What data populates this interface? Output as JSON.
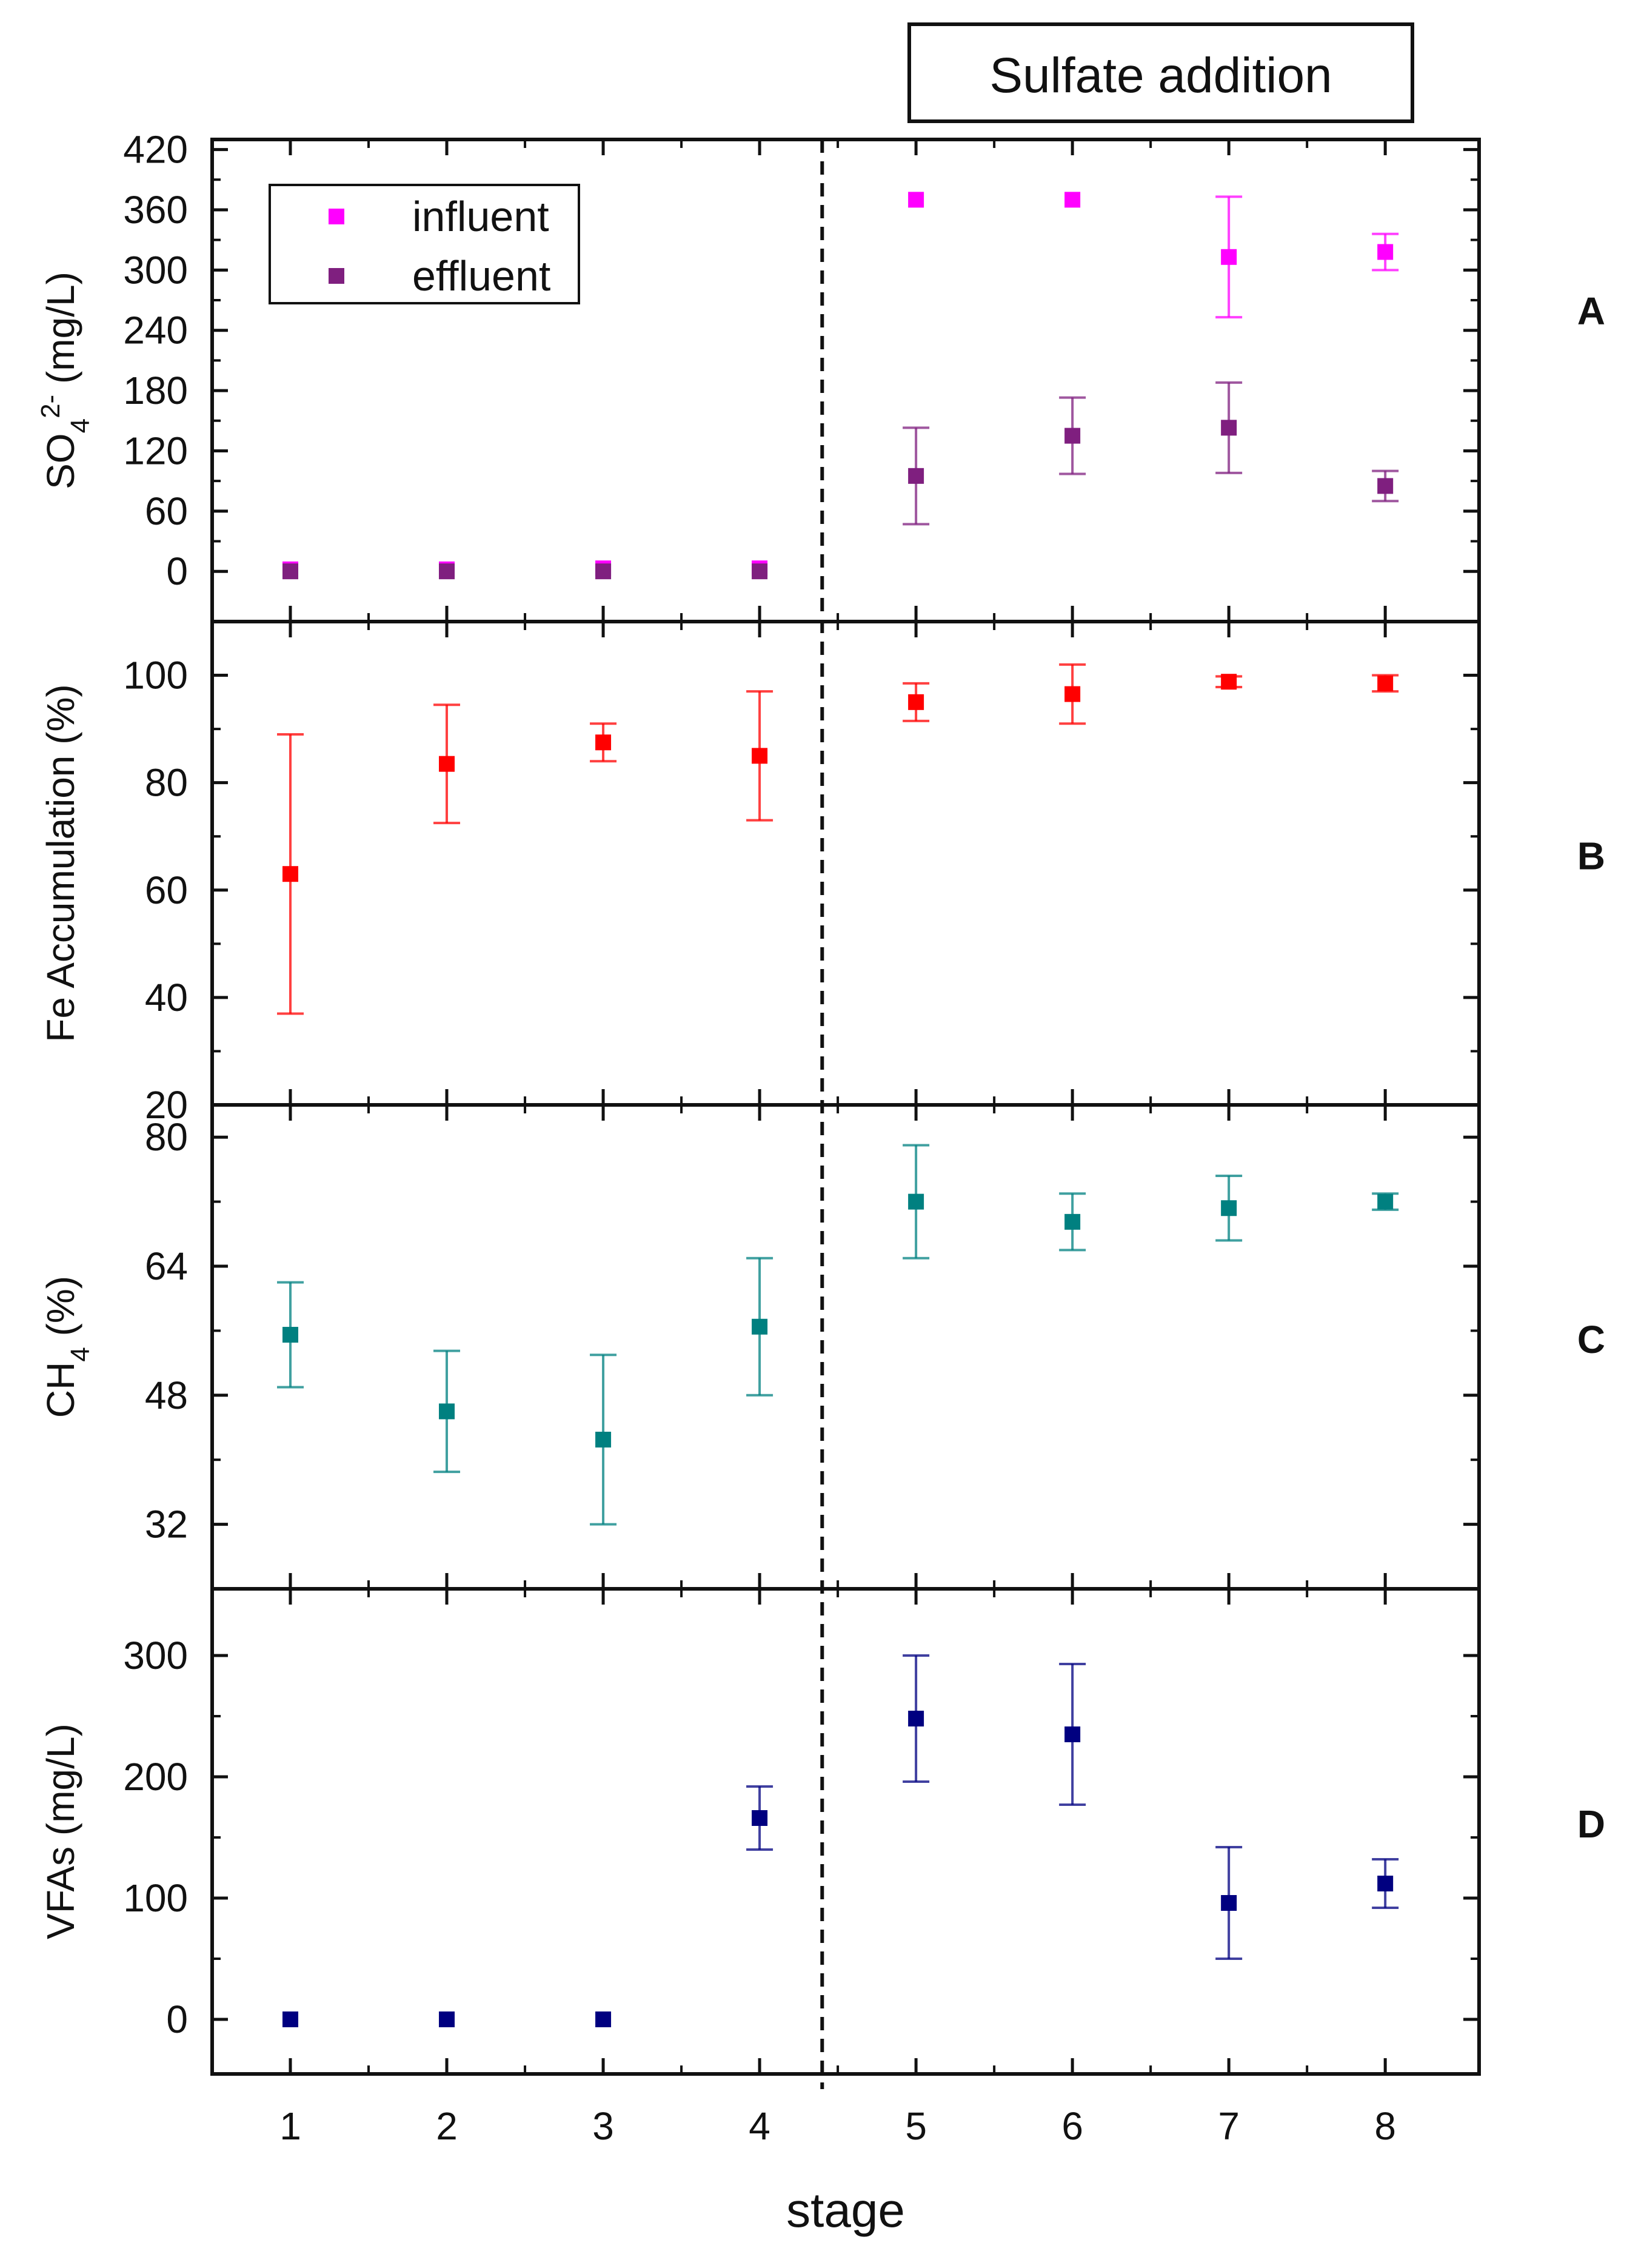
{
  "chart_data": {
    "type": "scatter",
    "annotation": "Sulfate addition",
    "xlabel": "stage",
    "x": [
      1,
      2,
      3,
      4,
      5,
      6,
      7,
      8
    ],
    "xticks": [
      "1",
      "2",
      "3",
      "4",
      "5",
      "6",
      "7",
      "8"
    ],
    "xlim": [
      0.5,
      8.6
    ],
    "divider_x": 4.4,
    "panels": [
      {
        "letter": "A",
        "ylabel_main": "SO",
        "ylabel_sub": "4",
        "ylabel_sup": "2-",
        "ylabel_rest": " (mg/L)",
        "ylim": [
          -50,
          430
        ],
        "yticks": [
          "0",
          "60",
          "120",
          "180",
          "240",
          "300",
          "360",
          "420"
        ],
        "ytick_values": [
          0,
          60,
          120,
          180,
          240,
          300,
          360,
          420
        ],
        "legend": {
          "position": "top-left",
          "entries": [
            "influent",
            "effluent"
          ]
        },
        "series": [
          {
            "name": "influent",
            "color": "#ff00ff",
            "values": [
              2,
              2,
              3,
              3,
              370,
              370,
              313,
              318
            ],
            "errors": [
              0,
              0,
              0,
              0,
              0,
              0,
              60,
              18
            ]
          },
          {
            "name": "effluent",
            "color": "#7f1f7f",
            "values": [
              0,
              0,
              0,
              0,
              95,
              135,
              143,
              85
            ],
            "errors": [
              0,
              0,
              0,
              0,
              48,
              38,
              45,
              15
            ]
          }
        ]
      },
      {
        "letter": "B",
        "ylabel": "Fe Accumulation (%)",
        "ylim": [
          20,
          110
        ],
        "yticks": [
          "20",
          "40",
          "60",
          "80",
          "100"
        ],
        "ytick_values": [
          20,
          40,
          60,
          80,
          100
        ],
        "series": [
          {
            "name": "Fe Accumulation",
            "color": "#ff0000",
            "values": [
              63,
              83.5,
              87.5,
              85,
              95,
              96.5,
              98.8,
              98.5
            ],
            "errors": [
              26,
              11,
              3.5,
              12,
              3.5,
              5.5,
              1,
              1.5
            ]
          }
        ]
      },
      {
        "letter": "C",
        "ylabel_main": "CH",
        "ylabel_sub": "4",
        "ylabel_rest": " (%)",
        "ylim": [
          24,
          84
        ],
        "yticks": [
          "32",
          "48",
          "64",
          "80"
        ],
        "ytick_values": [
          32,
          48,
          64,
          80
        ],
        "series": [
          {
            "name": "CH4",
            "color": "#008080",
            "values": [
              55.5,
              46,
              42.5,
              56.5,
              72,
              69.5,
              71.2,
              72
            ],
            "errors": [
              6.5,
              7.5,
              10.5,
              8.5,
              7,
              3.5,
              4,
              1
            ]
          }
        ]
      },
      {
        "letter": "D",
        "ylabel": "VFAs (mg/L)",
        "ylim": [
          -45,
          355
        ],
        "yticks": [
          "0",
          "100",
          "200",
          "300"
        ],
        "ytick_values": [
          0,
          100,
          200,
          300
        ],
        "series": [
          {
            "name": "VFAs",
            "color": "#000080",
            "values": [
              0,
              0,
              0,
              166,
              248,
              235,
              96,
              112
            ],
            "errors": [
              0,
              0,
              0,
              26,
              52,
              58,
              46,
              20
            ]
          }
        ]
      }
    ]
  }
}
